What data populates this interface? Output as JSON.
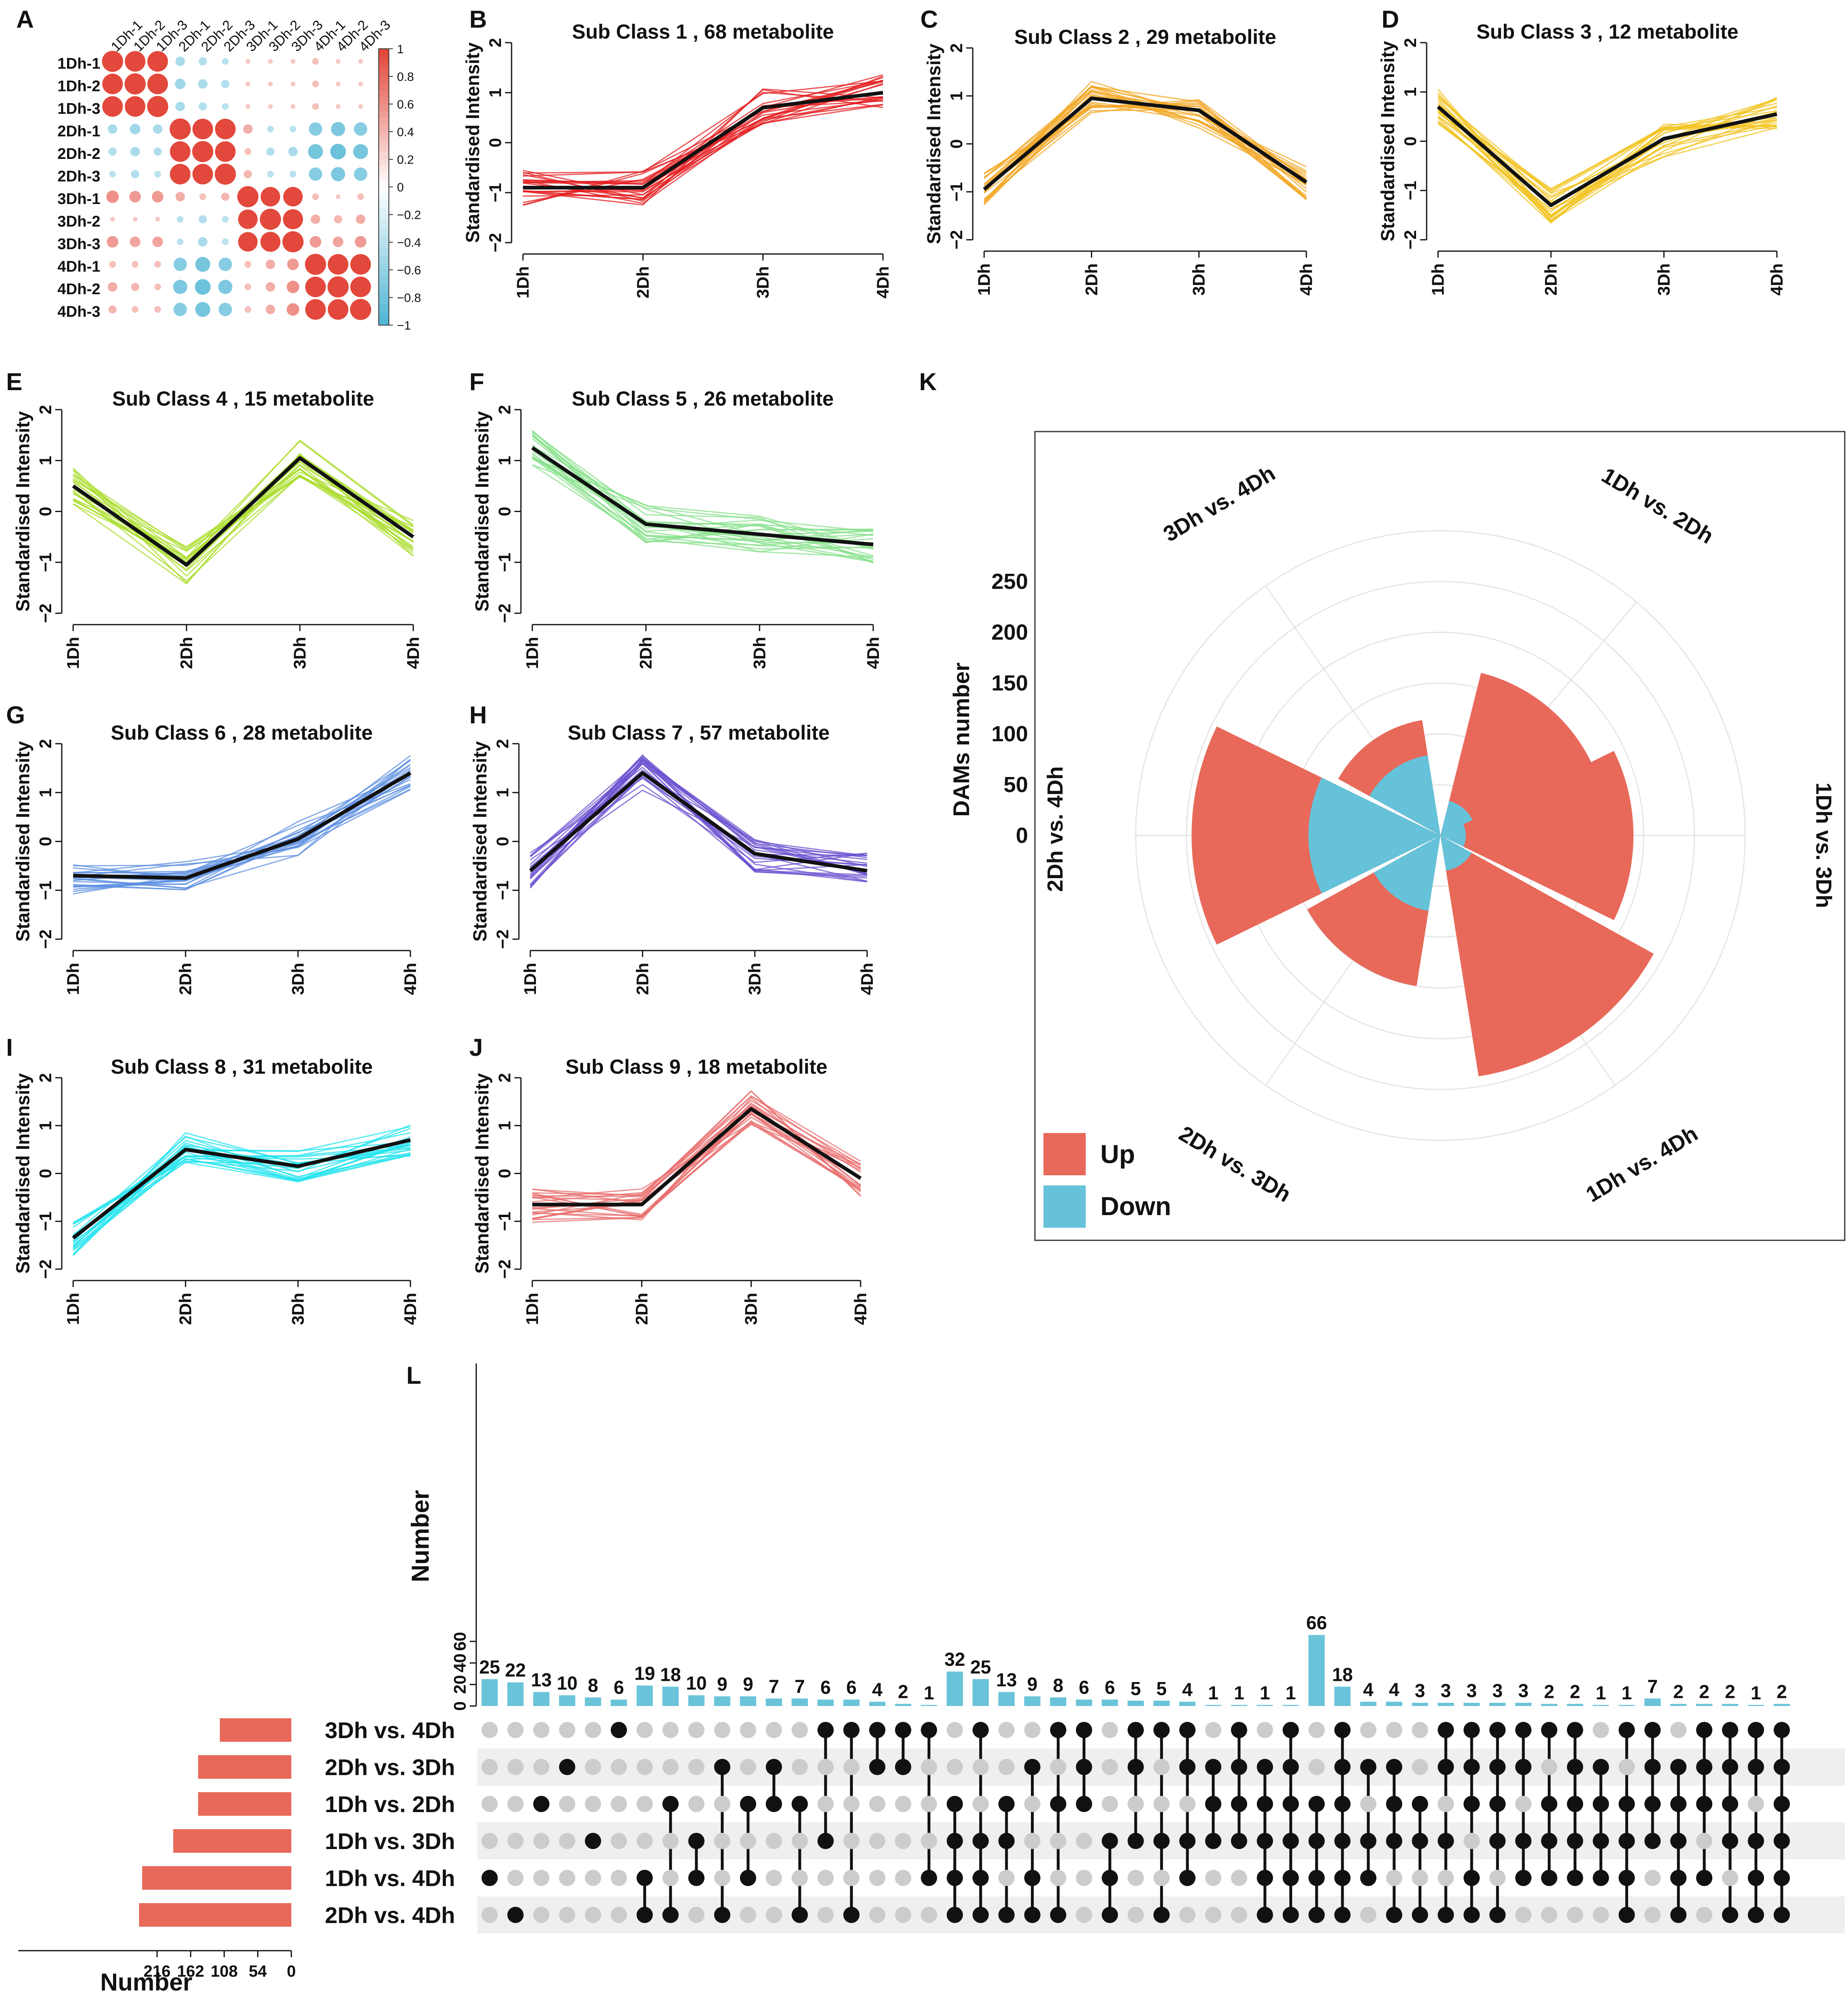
{
  "figure": {
    "panel_letters": [
      "A",
      "B",
      "C",
      "D",
      "E",
      "F",
      "G",
      "H",
      "I",
      "J",
      "K",
      "L"
    ]
  },
  "colors": {
    "up": "#e8695a",
    "down": "#65c2d9",
    "bar": "#6ac4d9",
    "setbar": "#e8695a",
    "dot_on": "#111111",
    "dot_off": "#cccccc",
    "black": "#111111",
    "corr_pos": "#e2483b",
    "corr_neg": "#52b6d5"
  },
  "chart_data": [
    {
      "id": "A",
      "type": "heatmap",
      "title": "",
      "labels": [
        "1Dh-1",
        "1Dh-2",
        "1Dh-3",
        "2Dh-1",
        "2Dh-2",
        "2Dh-3",
        "3Dh-1",
        "3Dh-2",
        "3Dh-3",
        "4Dh-1",
        "4Dh-2",
        "4Dh-3"
      ],
      "matrix": [
        [
          1.0,
          0.95,
          0.95,
          -0.2,
          -0.15,
          -0.1,
          0.05,
          0.05,
          0.05,
          0.1,
          0.05,
          0.05
        ],
        [
          0.95,
          1.0,
          0.95,
          -0.25,
          -0.2,
          -0.15,
          0.05,
          0.05,
          0.05,
          0.1,
          0.05,
          0.05
        ],
        [
          0.95,
          0.95,
          1.0,
          -0.2,
          -0.15,
          -0.1,
          0.05,
          0.05,
          0.05,
          0.1,
          0.05,
          0.05
        ],
        [
          -0.2,
          -0.25,
          -0.2,
          1.0,
          0.95,
          0.95,
          0.2,
          -0.1,
          -0.1,
          -0.4,
          -0.45,
          -0.4
        ],
        [
          -0.15,
          -0.2,
          -0.15,
          0.95,
          1.0,
          0.95,
          0.1,
          -0.15,
          -0.2,
          -0.5,
          -0.55,
          -0.5
        ],
        [
          -0.1,
          -0.15,
          -0.1,
          0.95,
          0.95,
          1.0,
          0.15,
          -0.1,
          -0.1,
          -0.4,
          -0.45,
          -0.4
        ],
        [
          0.35,
          0.3,
          0.3,
          0.2,
          0.1,
          0.15,
          1.0,
          0.85,
          0.85,
          0.1,
          0.05,
          0.1
        ],
        [
          0.05,
          0.05,
          0.05,
          -0.1,
          -0.15,
          -0.1,
          0.85,
          1.0,
          0.9,
          0.2,
          0.15,
          0.2
        ],
        [
          0.3,
          0.25,
          0.25,
          -0.1,
          -0.2,
          -0.1,
          0.85,
          0.9,
          1.0,
          0.3,
          0.25,
          0.3
        ],
        [
          0.1,
          0.1,
          0.1,
          -0.4,
          -0.5,
          -0.4,
          0.1,
          0.2,
          0.3,
          1.0,
          0.95,
          0.95
        ],
        [
          0.2,
          0.15,
          0.1,
          -0.45,
          -0.55,
          -0.45,
          0.1,
          0.2,
          0.35,
          0.95,
          1.0,
          0.95
        ],
        [
          0.15,
          0.1,
          0.1,
          -0.4,
          -0.5,
          -0.4,
          0.1,
          0.2,
          0.35,
          0.95,
          0.95,
          1.0
        ]
      ],
      "colorbar_ticks": [
        "1",
        "0.8",
        "0.6",
        "0.4",
        "0.2",
        "0",
        "−0.2",
        "−0.4",
        "−0.6",
        "−0.8",
        "−1"
      ]
    },
    {
      "id": "B",
      "type": "line",
      "title": "Sub Class  1  , 68 metabolite",
      "color": "#e41a1c",
      "x": [
        "1Dh",
        "2Dh",
        "3Dh",
        "4Dh"
      ],
      "mean": [
        -0.9,
        -0.9,
        0.7,
        1.0
      ],
      "ylabel": "Standardised Intensity",
      "ylim": [
        -2,
        2
      ],
      "yticks": [
        "−2",
        "−1",
        "0",
        "1",
        "2"
      ]
    },
    {
      "id": "C",
      "type": "line",
      "title": "Sub Class  2  , 29 metabolite",
      "color": "#f2a621",
      "x": [
        "1Dh",
        "2Dh",
        "3Dh",
        "4Dh"
      ],
      "mean": [
        -0.95,
        0.95,
        0.7,
        -0.8
      ],
      "ylabel": "Standardised Intensity",
      "ylim": [
        -2,
        2
      ],
      "yticks": [
        "−2",
        "−1",
        "0",
        "1",
        "2"
      ]
    },
    {
      "id": "D",
      "type": "line",
      "title": "Sub Class  3  , 12 metabolite",
      "color": "#f1c21b",
      "x": [
        "1Dh",
        "2Dh",
        "3Dh",
        "4Dh"
      ],
      "mean": [
        0.7,
        -1.3,
        0.05,
        0.55
      ],
      "ylabel": "Standardised Intensity",
      "ylim": [
        -2,
        2
      ],
      "yticks": [
        "−2",
        "−1",
        "0",
        "1",
        "2"
      ]
    },
    {
      "id": "E",
      "type": "line",
      "title": "Sub Class  4  , 15 metabolite",
      "color": "#aadc2a",
      "x": [
        "1Dh",
        "2Dh",
        "3Dh",
        "4Dh"
      ],
      "mean": [
        0.5,
        -1.05,
        1.05,
        -0.5
      ],
      "ylabel": "Standardised Intensity",
      "ylim": [
        -2,
        2
      ],
      "yticks": [
        "−2",
        "−1",
        "0",
        "1",
        "2"
      ]
    },
    {
      "id": "F",
      "type": "line",
      "title": "Sub Class  5  , 26 metabolite",
      "color": "#86e08a",
      "x": [
        "1Dh",
        "2Dh",
        "3Dh",
        "4Dh"
      ],
      "mean": [
        1.25,
        -0.25,
        -0.45,
        -0.65
      ],
      "ylabel": "Standardised Intensity",
      "ylim": [
        -2,
        2
      ],
      "yticks": [
        "−2",
        "−1",
        "0",
        "1",
        "2"
      ]
    },
    {
      "id": "G",
      "type": "line",
      "title": "Sub Class  6  , 28 metabolite",
      "color": "#5b8de0",
      "x": [
        "1Dh",
        "2Dh",
        "3Dh",
        "4Dh"
      ],
      "mean": [
        -0.7,
        -0.75,
        0.05,
        1.4
      ],
      "ylabel": "Standardised Intensity",
      "ylim": [
        -2,
        2
      ],
      "yticks": [
        "−2",
        "−1",
        "0",
        "1",
        "2"
      ]
    },
    {
      "id": "H",
      "type": "line",
      "title": "Sub Class  7  , 57 metabolite",
      "color": "#6a4fcf",
      "x": [
        "1Dh",
        "2Dh",
        "3Dh",
        "4Dh"
      ],
      "mean": [
        -0.6,
        1.4,
        -0.25,
        -0.6
      ],
      "ylabel": "Standardised Intensity",
      "ylim": [
        -2,
        2
      ],
      "yticks": [
        "−2",
        "−1",
        "0",
        "1",
        "2"
      ]
    },
    {
      "id": "I",
      "type": "line",
      "title": "Sub Class  8  , 31 metabolite",
      "color": "#1fe3ee",
      "x": [
        "1Dh",
        "2Dh",
        "3Dh",
        "4Dh"
      ],
      "mean": [
        -1.35,
        0.5,
        0.15,
        0.7
      ],
      "ylabel": "Standardised Intensity",
      "ylim": [
        -2,
        2
      ],
      "yticks": [
        "−2",
        "−1",
        "0",
        "1",
        "2"
      ]
    },
    {
      "id": "J",
      "type": "line",
      "title": "Sub Class  9  , 18 metabolite",
      "color": "#e86b6b",
      "x": [
        "1Dh",
        "2Dh",
        "3Dh",
        "4Dh"
      ],
      "mean": [
        -0.65,
        -0.65,
        1.35,
        -0.1
      ],
      "ylabel": "Standardised Intensity",
      "ylim": [
        -2,
        2
      ],
      "yticks": [
        "−2",
        "−1",
        "0",
        "1",
        "2"
      ]
    },
    {
      "id": "K",
      "type": "polar-bar",
      "ylabel": "DAMs number",
      "categories": [
        "1Dh vs. 2Dh",
        "1Dh vs. 3Dh",
        "1Dh vs. 4Dh",
        "2Dh vs. 3Dh",
        "2Dh vs. 4Dh",
        "3Dh vs. 4Dh"
      ],
      "up": [
        165,
        190,
        240,
        150,
        245,
        115
      ],
      "down": [
        35,
        25,
        35,
        75,
        130,
        80
      ],
      "radial_ticks": [
        "0",
        "50",
        "100",
        "150",
        "200",
        "250"
      ],
      "rmax": 300,
      "legend": [
        "Up",
        "Down"
      ]
    },
    {
      "id": "L",
      "type": "upset",
      "ylabel": "Number",
      "set_xlabel": "Number",
      "yticks": [
        "0",
        "20",
        "40",
        "60"
      ],
      "sets": [
        "3Dh vs. 4Dh",
        "2Dh vs. 3Dh",
        "1Dh vs. 2Dh",
        "1Dh vs. 3Dh",
        "1Dh vs. 4Dh",
        "2Dh vs. 4Dh"
      ],
      "set_sizes": [
        115,
        150,
        150,
        190,
        240,
        245
      ],
      "set_ticks": [
        "216",
        "162",
        "108",
        "54",
        "0"
      ],
      "intersections": [
        {
          "v": 25,
          "s": [
            4
          ]
        },
        {
          "v": 22,
          "s": [
            5
          ]
        },
        {
          "v": 13,
          "s": [
            2
          ]
        },
        {
          "v": 10,
          "s": [
            1
          ]
        },
        {
          "v": 8,
          "s": [
            3
          ]
        },
        {
          "v": 6,
          "s": [
            0
          ]
        },
        {
          "v": 19,
          "s": [
            4,
            5
          ]
        },
        {
          "v": 18,
          "s": [
            2,
            5
          ]
        },
        {
          "v": 10,
          "s": [
            3,
            4
          ]
        },
        {
          "v": 9,
          "s": [
            1,
            5
          ]
        },
        {
          "v": 9,
          "s": [
            2,
            4
          ]
        },
        {
          "v": 7,
          "s": [
            1,
            2
          ]
        },
        {
          "v": 7,
          "s": [
            2,
            5
          ]
        },
        {
          "v": 6,
          "s": [
            0,
            3
          ]
        },
        {
          "v": 6,
          "s": [
            0,
            5
          ]
        },
        {
          "v": 4,
          "s": [
            0,
            1
          ]
        },
        {
          "v": 2,
          "s": [
            0,
            1
          ]
        },
        {
          "v": 1,
          "s": [
            0,
            4
          ]
        },
        {
          "v": 32,
          "s": [
            2,
            3,
            4,
            5
          ]
        },
        {
          "v": 25,
          "s": [
            0,
            3,
            4,
            5
          ]
        },
        {
          "v": 13,
          "s": [
            2,
            3,
            5
          ]
        },
        {
          "v": 9,
          "s": [
            1,
            4,
            5
          ]
        },
        {
          "v": 8,
          "s": [
            0,
            2,
            5
          ]
        },
        {
          "v": 6,
          "s": [
            0,
            1,
            2
          ]
        },
        {
          "v": 6,
          "s": [
            3,
            4,
            5
          ]
        },
        {
          "v": 5,
          "s": [
            0,
            1,
            3
          ]
        },
        {
          "v": 5,
          "s": [
            0,
            3,
            5
          ]
        },
        {
          "v": 4,
          "s": [
            0,
            1,
            3,
            4
          ]
        },
        {
          "v": 1,
          "s": [
            1,
            2,
            3
          ]
        },
        {
          "v": 1,
          "s": [
            0,
            1,
            2,
            3
          ]
        },
        {
          "v": 1,
          "s": [
            1,
            2,
            3,
            4,
            5
          ]
        },
        {
          "v": 1,
          "s": [
            0,
            1,
            2,
            3,
            4,
            5
          ]
        },
        {
          "v": 66,
          "s": [
            2,
            3,
            4,
            5
          ]
        },
        {
          "v": 18,
          "s": [
            0,
            1,
            2,
            3,
            4,
            5
          ]
        },
        {
          "v": 4,
          "s": [
            1,
            3,
            4
          ]
        },
        {
          "v": 4,
          "s": [
            1,
            2,
            3,
            5
          ]
        },
        {
          "v": 3,
          "s": [
            2,
            3,
            5
          ]
        },
        {
          "v": 3,
          "s": [
            0,
            1,
            3,
            5
          ]
        },
        {
          "v": 3,
          "s": [
            0,
            1,
            2,
            4,
            5
          ]
        },
        {
          "v": 3,
          "s": [
            0,
            1,
            2,
            3,
            5
          ]
        },
        {
          "v": 3,
          "s": [
            0,
            1,
            3,
            4
          ]
        },
        {
          "v": 2,
          "s": [
            0,
            2,
            3,
            4
          ]
        },
        {
          "v": 2,
          "s": [
            0,
            1,
            2,
            3,
            4
          ]
        },
        {
          "v": 1,
          "s": [
            1,
            2,
            3,
            4
          ]
        },
        {
          "v": 1,
          "s": [
            0,
            2,
            3,
            4,
            5
          ]
        },
        {
          "v": 7,
          "s": [
            0,
            1,
            2,
            3
          ]
        },
        {
          "v": 2,
          "s": [
            1,
            2,
            3,
            4,
            5
          ]
        },
        {
          "v": 2,
          "s": [
            0,
            1,
            2,
            4
          ]
        },
        {
          "v": 2,
          "s": [
            0,
            1,
            2,
            3,
            5
          ]
        },
        {
          "v": 1,
          "s": [
            0,
            1,
            3,
            4,
            5
          ]
        },
        {
          "v": 2,
          "s": [
            0,
            1,
            2,
            3,
            4,
            5
          ]
        }
      ]
    }
  ]
}
